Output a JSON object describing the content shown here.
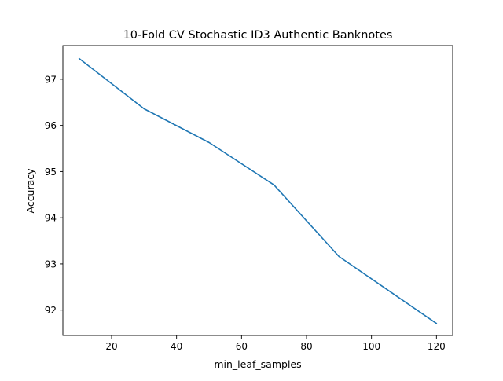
{
  "chart_data": {
    "type": "line",
    "title": "10-Fold CV Stochastic ID3 Authentic Banknotes",
    "xlabel": "min_leaf_samples",
    "ylabel": "Accuracy",
    "xlim": [
      5,
      125
    ],
    "ylim": [
      91.45,
      97.73
    ],
    "xticks": [
      20,
      40,
      60,
      80,
      100,
      120
    ],
    "yticks": [
      92,
      93,
      94,
      95,
      96,
      97
    ],
    "xtick_labels": [
      "20",
      "40",
      "60",
      "80",
      "100",
      "120"
    ],
    "ytick_labels": [
      "92",
      "93",
      "94",
      "95",
      "96",
      "97"
    ],
    "grid": false,
    "series": [
      {
        "color": "#1f77b4",
        "x": [
          10,
          30,
          50,
          70,
          90,
          120
        ],
        "y": [
          97.45,
          96.36,
          95.63,
          94.71,
          93.16,
          91.71
        ]
      }
    ]
  }
}
